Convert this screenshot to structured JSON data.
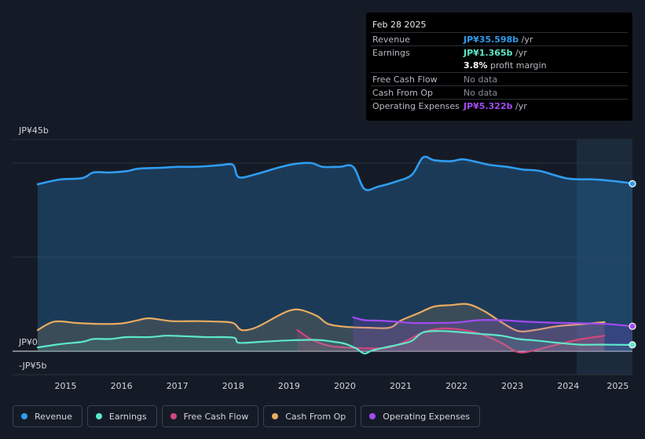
{
  "tooltip": {
    "date": "Feb 28 2025",
    "rows": [
      {
        "label": "Revenue",
        "value": "JP¥35.598b",
        "unit": "/yr"
      },
      {
        "label": "Earnings",
        "value": "JP¥1.365b",
        "unit": "/yr"
      },
      {
        "label": "",
        "value": "3.8%",
        "unit": "profit margin"
      },
      {
        "label": "Free Cash Flow",
        "value": "No data",
        "unit": ""
      },
      {
        "label": "Cash From Op",
        "value": "No data",
        "unit": ""
      },
      {
        "label": "Operating Expenses",
        "value": "JP¥5.322b",
        "unit": "/yr"
      }
    ]
  },
  "colors": {
    "revenue": "#2f9cf0",
    "earnings": "#5ee8c9",
    "free_cash_flow": "#d1477e",
    "cash_from_op": "#e8ac61",
    "operating_expenses": "#a24bf2"
  },
  "chart_data": {
    "type": "area",
    "title": "",
    "ylabel_top": "JP¥45b",
    "ylabel_zero": "JP¥0",
    "ylabel_bottom": "-JP¥5b",
    "ylim": [
      -5,
      45
    ],
    "xlim": [
      2014.5,
      2025.15
    ],
    "x_tick_labels": [
      "2015",
      "2016",
      "2017",
      "2018",
      "2019",
      "2020",
      "2021",
      "2022",
      "2023",
      "2024",
      "2025"
    ],
    "x_ticks": [
      2015,
      2016,
      2017,
      2018,
      2019,
      2020,
      2021,
      2022,
      2023,
      2024,
      2025
    ],
    "forecast_start": 2024.15,
    "series": [
      {
        "name": "Revenue",
        "key": "revenue",
        "x": [
          2014.5,
          2014.9,
          2015.3,
          2015.5,
          2015.8,
          2016.1,
          2016.3,
          2016.7,
          2017.0,
          2017.3,
          2017.6,
          2017.8,
          2018.0,
          2018.1,
          2018.4,
          2018.8,
          2019.1,
          2019.4,
          2019.6,
          2019.9,
          2020.15,
          2020.35,
          2020.6,
          2020.9,
          2021.2,
          2021.4,
          2021.6,
          2021.9,
          2022.1,
          2022.3,
          2022.6,
          2022.9,
          2023.2,
          2023.5,
          2024.0,
          2024.5,
          2025.0,
          2025.15
        ],
        "values": [
          35.5,
          36.5,
          36.8,
          38.0,
          38.0,
          38.3,
          38.8,
          39.0,
          39.2,
          39.2,
          39.4,
          39.6,
          39.6,
          37.0,
          37.6,
          39.0,
          39.8,
          40.0,
          39.2,
          39.2,
          39.2,
          34.5,
          35.0,
          36.0,
          37.5,
          41.2,
          40.6,
          40.4,
          40.8,
          40.4,
          39.6,
          39.2,
          38.6,
          38.3,
          36.7,
          36.5,
          35.9,
          35.6
        ]
      },
      {
        "name": "Earnings",
        "key": "earnings",
        "x": [
          2014.5,
          2014.9,
          2015.3,
          2015.5,
          2015.8,
          2016.1,
          2016.5,
          2016.8,
          2017.1,
          2017.5,
          2018.0,
          2018.1,
          2018.5,
          2019.0,
          2019.5,
          2019.8,
          2020.0,
          2020.2,
          2020.35,
          2020.5,
          2020.8,
          2021.0,
          2021.2,
          2021.4,
          2021.7,
          2022.0,
          2022.4,
          2022.8,
          2023.1,
          2023.4,
          2023.8,
          2024.2,
          2024.6,
          2025.0,
          2025.15
        ],
        "values": [
          0.8,
          1.5,
          2.0,
          2.6,
          2.6,
          3.0,
          3.0,
          3.3,
          3.2,
          3.0,
          2.9,
          1.8,
          2.0,
          2.3,
          2.4,
          2.0,
          1.6,
          0.6,
          -0.5,
          0.2,
          1.0,
          1.5,
          2.2,
          4.0,
          4.3,
          4.1,
          3.7,
          3.3,
          2.6,
          2.3,
          1.8,
          1.4,
          1.4,
          1.35,
          1.36
        ]
      },
      {
        "name": "Free Cash Flow",
        "key": "free_cash_flow",
        "x": [
          2019.15,
          2019.4,
          2019.7,
          2020.0,
          2020.4,
          2020.8,
          2021.1,
          2021.4,
          2021.7,
          2022.0,
          2022.4,
          2022.8,
          2023.1,
          2023.4,
          2023.8,
          2024.2,
          2024.65
        ],
        "values": [
          4.5,
          2.5,
          1.2,
          0.8,
          0.6,
          0.8,
          2.2,
          4.0,
          4.8,
          4.7,
          3.8,
          1.8,
          -0.2,
          0.2,
          1.4,
          2.5,
          3.3
        ]
      },
      {
        "name": "Cash From Op",
        "key": "cash_from_op",
        "x": [
          2014.5,
          2014.8,
          2015.2,
          2015.6,
          2016.0,
          2016.3,
          2016.5,
          2016.9,
          2017.3,
          2017.7,
          2018.0,
          2018.15,
          2018.4,
          2018.8,
          2019.0,
          2019.2,
          2019.5,
          2019.7,
          2020.0,
          2020.4,
          2020.8,
          2021.0,
          2021.3,
          2021.6,
          2021.9,
          2022.2,
          2022.5,
          2022.8,
          2023.1,
          2023.4,
          2023.8,
          2024.2,
          2024.65
        ],
        "values": [
          4.5,
          6.3,
          6.0,
          5.8,
          5.9,
          6.6,
          7.0,
          6.4,
          6.4,
          6.3,
          6.0,
          4.5,
          5.0,
          7.5,
          8.6,
          8.8,
          7.5,
          5.8,
          5.2,
          5.0,
          5.0,
          6.5,
          8.0,
          9.5,
          9.8,
          10.0,
          8.5,
          6.2,
          4.3,
          4.5,
          5.3,
          5.7,
          6.2
        ]
      },
      {
        "name": "Operating Expenses",
        "key": "operating_expenses",
        "x": [
          2020.15,
          2020.35,
          2020.6,
          2020.9,
          2021.2,
          2021.6,
          2022.0,
          2022.4,
          2022.8,
          2023.2,
          2023.6,
          2024.0,
          2024.4,
          2024.8,
          2025.15
        ],
        "values": [
          7.2,
          6.6,
          6.5,
          6.3,
          6.0,
          6.0,
          6.1,
          6.6,
          6.6,
          6.3,
          6.1,
          6.0,
          5.9,
          5.7,
          5.3
        ]
      }
    ],
    "legend": [
      {
        "label": "Revenue",
        "key": "revenue"
      },
      {
        "label": "Earnings",
        "key": "earnings"
      },
      {
        "label": "Free Cash Flow",
        "key": "free_cash_flow"
      },
      {
        "label": "Cash From Op",
        "key": "cash_from_op"
      },
      {
        "label": "Operating Expenses",
        "key": "operating_expenses"
      }
    ]
  }
}
